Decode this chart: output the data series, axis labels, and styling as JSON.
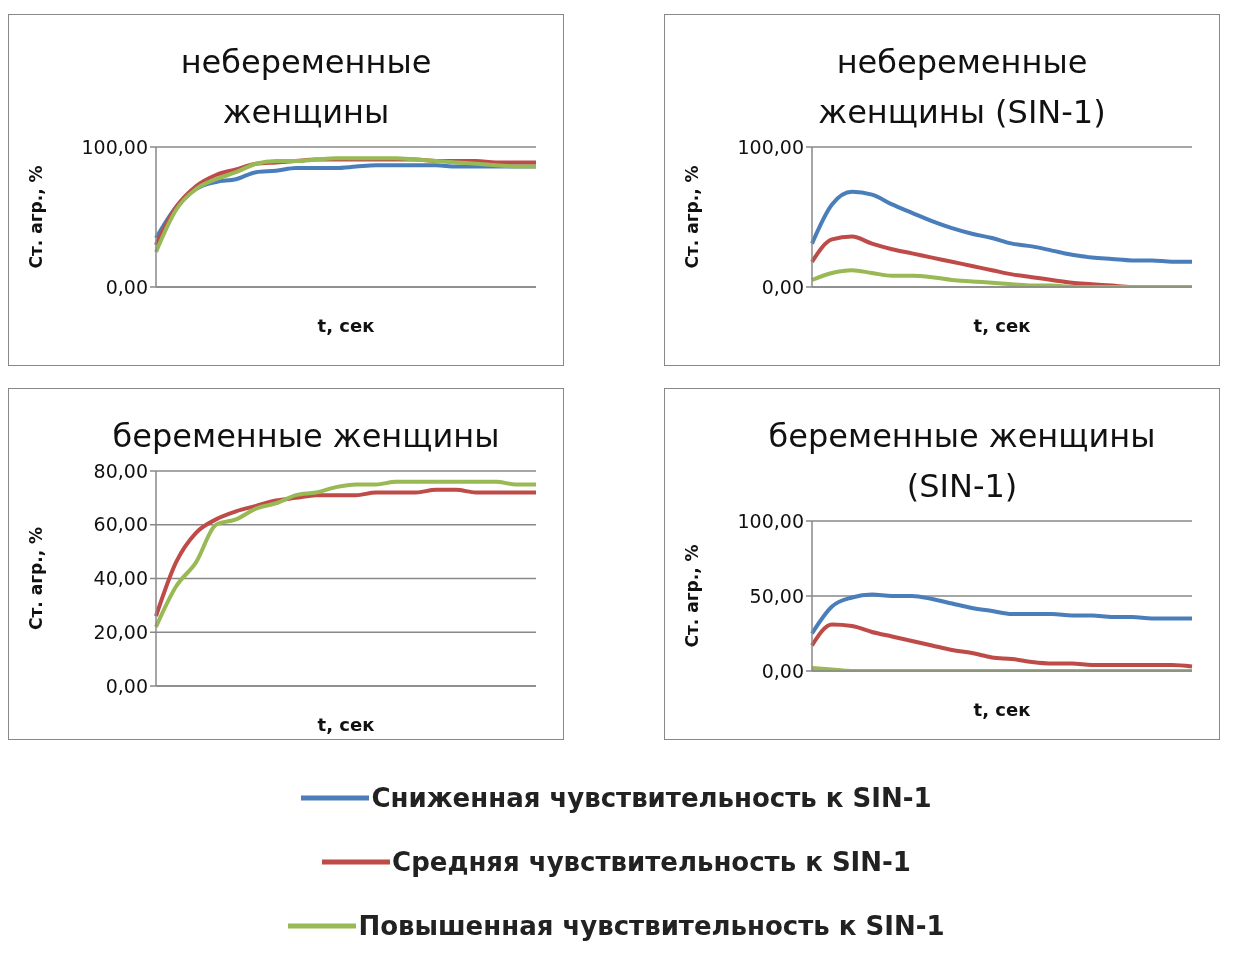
{
  "chart_data": [
    {
      "type": "line",
      "title": "небеременные женщины",
      "xlabel": "t, сек",
      "ylabel": "Ст. агр., %",
      "categories": [
        null,
        null,
        null,
        null,
        null,
        null,
        null,
        null,
        null,
        null,
        null,
        null,
        null,
        null,
        null,
        null,
        null,
        null,
        null,
        null
      ],
      "ylim": [
        0,
        100
      ],
      "yticks": [
        {
          "value": 0,
          "label": "0,00"
        },
        {
          "value": 100,
          "label": "100,00"
        }
      ],
      "grid": "y",
      "legend": "bottom",
      "marker": "none",
      "series": [
        {
          "name": "Сниженная чувствительность к SIN-1",
          "color": "#4a7ebb",
          "values": [
            35,
            57,
            70,
            75,
            77,
            82,
            83,
            85,
            85,
            85,
            86,
            87,
            87,
            87,
            87,
            86,
            86,
            86,
            86,
            86
          ]
        },
        {
          "name": "Средняя чувствительность к SIN-1",
          "color": "#be4b48",
          "values": [
            30,
            57,
            72,
            80,
            84,
            88,
            89,
            90,
            91,
            91,
            91,
            91,
            91,
            91,
            90,
            90,
            90,
            89,
            89,
            89
          ]
        },
        {
          "name": "Повышенная чувствительность к SIN-1",
          "color": "#98b954",
          "values": [
            25,
            55,
            70,
            77,
            82,
            88,
            90,
            90,
            91,
            92,
            92,
            92,
            92,
            91,
            90,
            89,
            88,
            87,
            86,
            86
          ]
        }
      ]
    },
    {
      "type": "line",
      "title": "небеременные женщины (SIN-1)",
      "xlabel": "t, сек",
      "ylabel": "Ст. агр., %",
      "categories": [
        null,
        null,
        null,
        null,
        null,
        null,
        null,
        null,
        null,
        null,
        null,
        null,
        null,
        null,
        null,
        null,
        null,
        null,
        null,
        null
      ],
      "ylim": [
        0,
        100
      ],
      "yticks": [
        {
          "value": 0,
          "label": "0,00"
        },
        {
          "value": 100,
          "label": "100,00"
        }
      ],
      "grid": "y",
      "marker": "none",
      "series": [
        {
          "color": "#4a7ebb",
          "values": [
            31,
            59,
            68,
            66,
            59,
            53,
            47,
            42,
            38,
            35,
            31,
            29,
            26,
            23,
            21,
            20,
            19,
            19,
            18,
            18
          ]
        },
        {
          "color": "#be4b48",
          "values": [
            18,
            34,
            36,
            31,
            27,
            24,
            21,
            18,
            15,
            12,
            9,
            7,
            5,
            3,
            2,
            1,
            0,
            0,
            null,
            null
          ]
        },
        {
          "color": "#98b954",
          "values": [
            5,
            10,
            12,
            10,
            8,
            8,
            7,
            5,
            4,
            3,
            2,
            1,
            1,
            0,
            0,
            0,
            0,
            0,
            0,
            0
          ]
        }
      ]
    },
    {
      "type": "line",
      "title": "беременные женщины",
      "xlabel": "t, сек",
      "ylabel": "Ст. агр., %",
      "categories": [
        null,
        null,
        null,
        null,
        null,
        null,
        null,
        null,
        null,
        null,
        null,
        null,
        null,
        null,
        null,
        null,
        null,
        null,
        null,
        null
      ],
      "ylim": [
        0,
        80
      ],
      "yticks": [
        {
          "value": 0,
          "label": "0,00"
        },
        {
          "value": 20,
          "label": "20,00"
        },
        {
          "value": 40,
          "label": "40,00"
        },
        {
          "value": 60,
          "label": "60,00"
        },
        {
          "value": 80,
          "label": "80,00"
        }
      ],
      "grid": "y",
      "marker": "none",
      "series": [
        {
          "color": "#be4b48",
          "values": [
            26,
            46,
            57,
            62,
            65,
            67,
            69,
            70,
            71,
            71,
            71,
            72,
            72,
            72,
            73,
            73,
            72,
            72,
            72,
            72
          ]
        },
        {
          "color": "#98b954",
          "values": [
            22,
            37,
            46,
            60,
            62,
            66,
            68,
            71,
            72,
            74,
            75,
            75,
            76,
            76,
            76,
            76,
            76,
            76,
            75,
            75
          ]
        }
      ]
    },
    {
      "type": "line",
      "title": "беременные женщины (SIN-1)",
      "xlabel": "t, сек",
      "ylabel": "Ст. агр., %",
      "categories": [
        null,
        null,
        null,
        null,
        null,
        null,
        null,
        null,
        null,
        null,
        null,
        null,
        null,
        null,
        null,
        null,
        null,
        null,
        null,
        null
      ],
      "ylim": [
        0,
        100
      ],
      "yticks": [
        {
          "value": 0,
          "label": "0,00"
        },
        {
          "value": 50,
          "label": "50,00"
        },
        {
          "value": 100,
          "label": "100,00"
        }
      ],
      "grid": "y",
      "marker": "none",
      "series": [
        {
          "color": "#4a7ebb",
          "values": [
            25,
            43,
            49,
            51,
            50,
            50,
            48,
            45,
            42,
            40,
            38,
            38,
            38,
            37,
            37,
            36,
            36,
            35,
            35,
            35
          ]
        },
        {
          "color": "#be4b48",
          "values": [
            17,
            31,
            30,
            26,
            23,
            20,
            17,
            14,
            12,
            9,
            8,
            6,
            5,
            5,
            4,
            4,
            4,
            4,
            4,
            3
          ]
        },
        {
          "color": "#98b954",
          "values": [
            2,
            1,
            0,
            0,
            0,
            0,
            0,
            0,
            0,
            0,
            0,
            0,
            0,
            0,
            0,
            0,
            0,
            0,
            0,
            0
          ]
        }
      ]
    }
  ]
}
